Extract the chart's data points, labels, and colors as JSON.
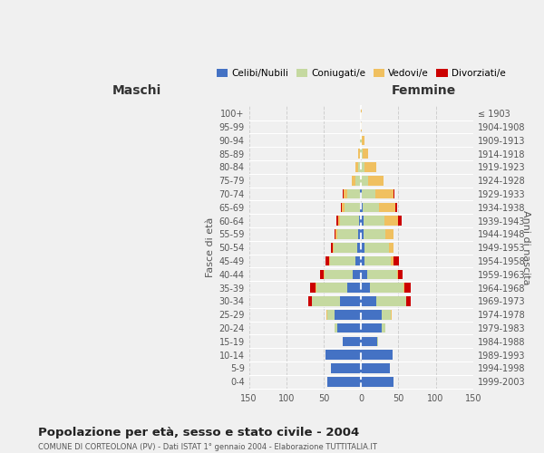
{
  "age_groups": [
    "0-4",
    "5-9",
    "10-14",
    "15-19",
    "20-24",
    "25-29",
    "30-34",
    "35-39",
    "40-44",
    "45-49",
    "50-54",
    "55-59",
    "60-64",
    "65-69",
    "70-74",
    "75-79",
    "80-84",
    "85-89",
    "90-94",
    "95-99",
    "100+"
  ],
  "anni_nascita": [
    "1999-2003",
    "1994-1998",
    "1989-1993",
    "1984-1988",
    "1979-1983",
    "1974-1978",
    "1969-1973",
    "1964-1968",
    "1959-1963",
    "1954-1958",
    "1949-1953",
    "1944-1948",
    "1939-1943",
    "1934-1938",
    "1929-1933",
    "1924-1928",
    "1919-1923",
    "1914-1918",
    "1909-1913",
    "1904-1908",
    "≤ 1903"
  ],
  "maschi": {
    "celibi": [
      45,
      40,
      47,
      25,
      32,
      35,
      28,
      18,
      11,
      7,
      5,
      4,
      3,
      2,
      1,
      0,
      0,
      0,
      0,
      0,
      0
    ],
    "coniugati": [
      0,
      0,
      0,
      0,
      3,
      10,
      38,
      42,
      38,
      35,
      32,
      28,
      25,
      20,
      17,
      8,
      4,
      2,
      1,
      0,
      0
    ],
    "vedovi": [
      0,
      0,
      0,
      0,
      0,
      1,
      0,
      1,
      1,
      1,
      1,
      2,
      3,
      4,
      5,
      5,
      3,
      2,
      1,
      0,
      0
    ],
    "divorziati": [
      0,
      0,
      0,
      0,
      0,
      0,
      5,
      7,
      5,
      5,
      2,
      1,
      2,
      1,
      1,
      0,
      0,
      0,
      0,
      0,
      0
    ]
  },
  "femmine": {
    "nubili": [
      43,
      38,
      42,
      22,
      28,
      28,
      20,
      12,
      8,
      5,
      4,
      3,
      3,
      2,
      1,
      0,
      0,
      0,
      0,
      0,
      0
    ],
    "coniugate": [
      0,
      0,
      0,
      1,
      4,
      12,
      40,
      45,
      40,
      35,
      33,
      30,
      28,
      22,
      18,
      10,
      5,
      2,
      1,
      0,
      0
    ],
    "vedove": [
      0,
      0,
      0,
      0,
      0,
      1,
      1,
      1,
      2,
      3,
      6,
      10,
      18,
      22,
      25,
      20,
      15,
      8,
      3,
      1,
      1
    ],
    "divorziate": [
      0,
      0,
      0,
      0,
      0,
      0,
      5,
      8,
      5,
      8,
      1,
      1,
      5,
      2,
      1,
      0,
      0,
      0,
      0,
      0,
      0
    ]
  },
  "colors": {
    "celibi": "#4472C4",
    "coniugati": "#C5D9A0",
    "vedovi": "#F0C060",
    "divorziati": "#CC0000"
  },
  "xlim": 150,
  "title": "Popolazione per età, sesso e stato civile - 2004",
  "subtitle": "COMUNE DI CORTEOLONA (PV) - Dati ISTAT 1° gennaio 2004 - Elaborazione TUTTITALIA.IT",
  "ylabel_left": "Fasce di età",
  "ylabel_right": "Anni di nascita",
  "xlabel_maschi": "Maschi",
  "xlabel_femmine": "Femmine",
  "bg_color": "#f0f0f0",
  "grid_color": "#cccccc"
}
